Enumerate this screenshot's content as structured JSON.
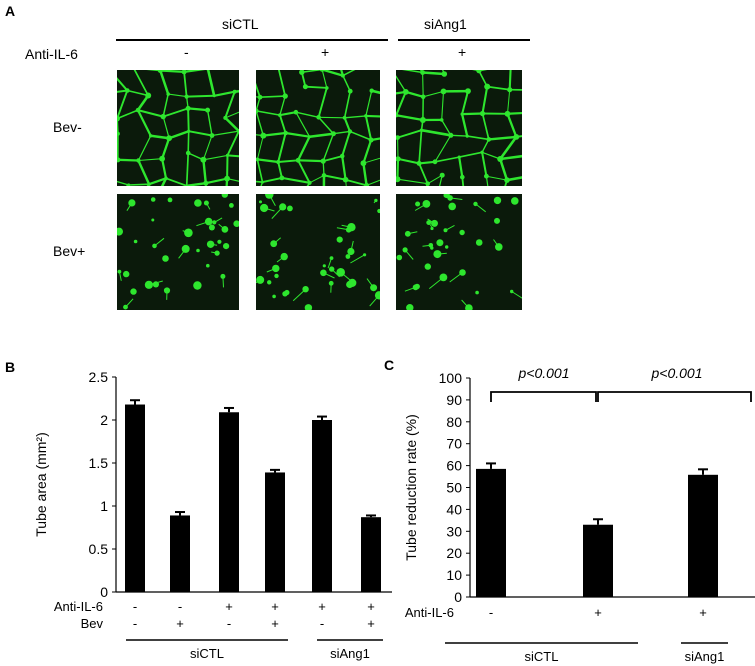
{
  "panel_a": {
    "letter": "A",
    "group_labels": [
      "siCTL",
      "siAng1"
    ],
    "row_header": "Anti-IL-6",
    "column_signs": [
      "-",
      "+",
      "+"
    ],
    "row_labels": [
      "Bev-",
      "Bev+"
    ],
    "image_color": "#2ee62e"
  },
  "panel_b": {
    "letter": "B"
  },
  "panel_c": {
    "letter": "C"
  },
  "chart_data": [
    {
      "type": "bar",
      "panel": "B",
      "ylabel": "Tube area (mm²)",
      "ylim": [
        0,
        2.5
      ],
      "yticks": [
        "0",
        "0.5",
        "1",
        "1.5",
        "2",
        "2.5"
      ],
      "categories": [
        "1",
        "2",
        "3",
        "4",
        "5",
        "6"
      ],
      "values": [
        2.18,
        0.89,
        2.09,
        1.39,
        2.0,
        0.87
      ],
      "errors": [
        0.05,
        0.04,
        0.05,
        0.03,
        0.04,
        0.02
      ],
      "row_labels": [
        "Anti-IL-6",
        "Bev"
      ],
      "anti_il6": [
        "-",
        "-",
        "+",
        "+",
        "+",
        "+"
      ],
      "bev": [
        "-",
        "+",
        "-",
        "+",
        "-",
        "+"
      ],
      "groups": [
        "siCTL",
        "siAng1"
      ],
      "bar_color": "#000000"
    },
    {
      "type": "bar",
      "panel": "C",
      "ylabel": "Tube reduction rate (%)",
      "ylim": [
        0,
        100
      ],
      "yticks": [
        "0",
        "10",
        "20",
        "30",
        "40",
        "50",
        "60",
        "70",
        "80",
        "90",
        "100"
      ],
      "categories": [
        "1",
        "2",
        "3"
      ],
      "values": [
        58.5,
        33.0,
        55.8
      ],
      "errors": [
        2.5,
        2.5,
        2.5
      ],
      "row_labels": [
        "Anti-IL-6"
      ],
      "anti_il6": [
        "-",
        "+",
        "+"
      ],
      "groups": [
        "siCTL",
        "siAng1"
      ],
      "annotations": [
        "p<0.001",
        "p<0.001"
      ],
      "bar_color": "#000000"
    }
  ]
}
